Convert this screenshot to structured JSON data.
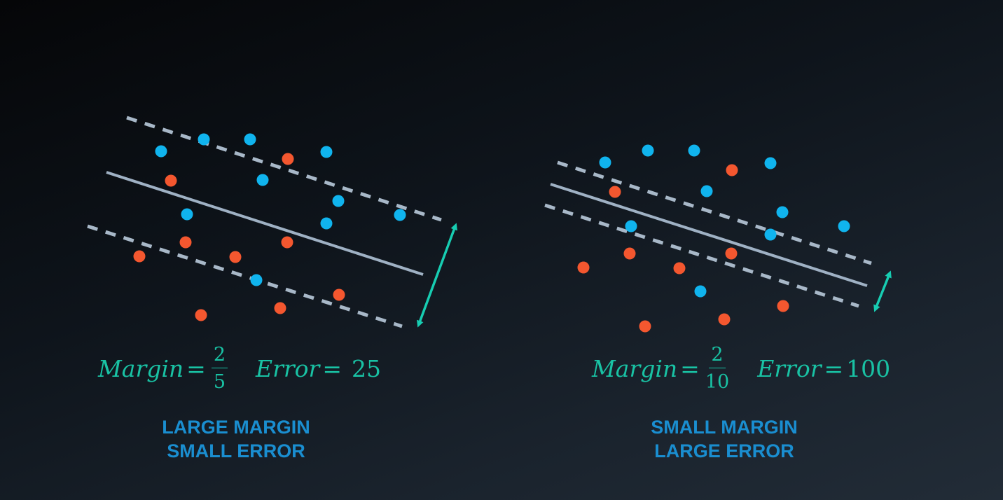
{
  "colors": {
    "blue_point": "#10b4ee",
    "orange_point": "#f4572f",
    "boundary_line": "#9fb1c4",
    "margin_line": "#a8b8c8",
    "arrow": "#17cdb2",
    "formula": "#19c2a4",
    "caption": "#1a8ed0"
  },
  "panels": [
    {
      "formula": {
        "margin_label": "Margin",
        "margin_numerator": "2",
        "margin_denominator": "5",
        "error_label": "Error",
        "error_value": "25"
      },
      "caption": {
        "line1": "LARGE MARGIN",
        "line2": "SMALL ERROR"
      },
      "points": {
        "blue": [
          [
            230,
            216
          ],
          [
            291,
            199
          ],
          [
            357,
            199
          ],
          [
            466,
            217
          ],
          [
            375,
            257
          ],
          [
            483,
            287
          ],
          [
            267,
            306
          ],
          [
            466,
            319
          ],
          [
            571,
            307
          ],
          [
            366,
            400
          ]
        ],
        "orange": [
          [
            411,
            227
          ],
          [
            244,
            258
          ],
          [
            265,
            346
          ],
          [
            336,
            367
          ],
          [
            199,
            366
          ],
          [
            410,
            346
          ],
          [
            484,
            421
          ],
          [
            400,
            440
          ],
          [
            287,
            450
          ]
        ]
      }
    },
    {
      "formula": {
        "margin_label": "Margin",
        "margin_numerator": "2",
        "margin_denominator": "10",
        "error_label": "Error",
        "error_value": "100"
      },
      "caption": {
        "line1": "SMALL MARGIN",
        "line2": "LARGE ERROR"
      },
      "points": {
        "blue": [
          [
            864,
            232
          ],
          [
            925,
            215
          ],
          [
            991,
            215
          ],
          [
            1100,
            233
          ],
          [
            1009,
            273
          ],
          [
            1117,
            303
          ],
          [
            901,
            323
          ],
          [
            1100,
            335
          ],
          [
            1205,
            323
          ],
          [
            1000,
            416
          ]
        ],
        "orange": [
          [
            1045,
            243
          ],
          [
            878,
            274
          ],
          [
            899,
            362
          ],
          [
            970,
            383
          ],
          [
            833,
            382
          ],
          [
            1044,
            362
          ],
          [
            1118,
            437
          ],
          [
            1034,
            456
          ],
          [
            921,
            466
          ]
        ]
      }
    }
  ]
}
